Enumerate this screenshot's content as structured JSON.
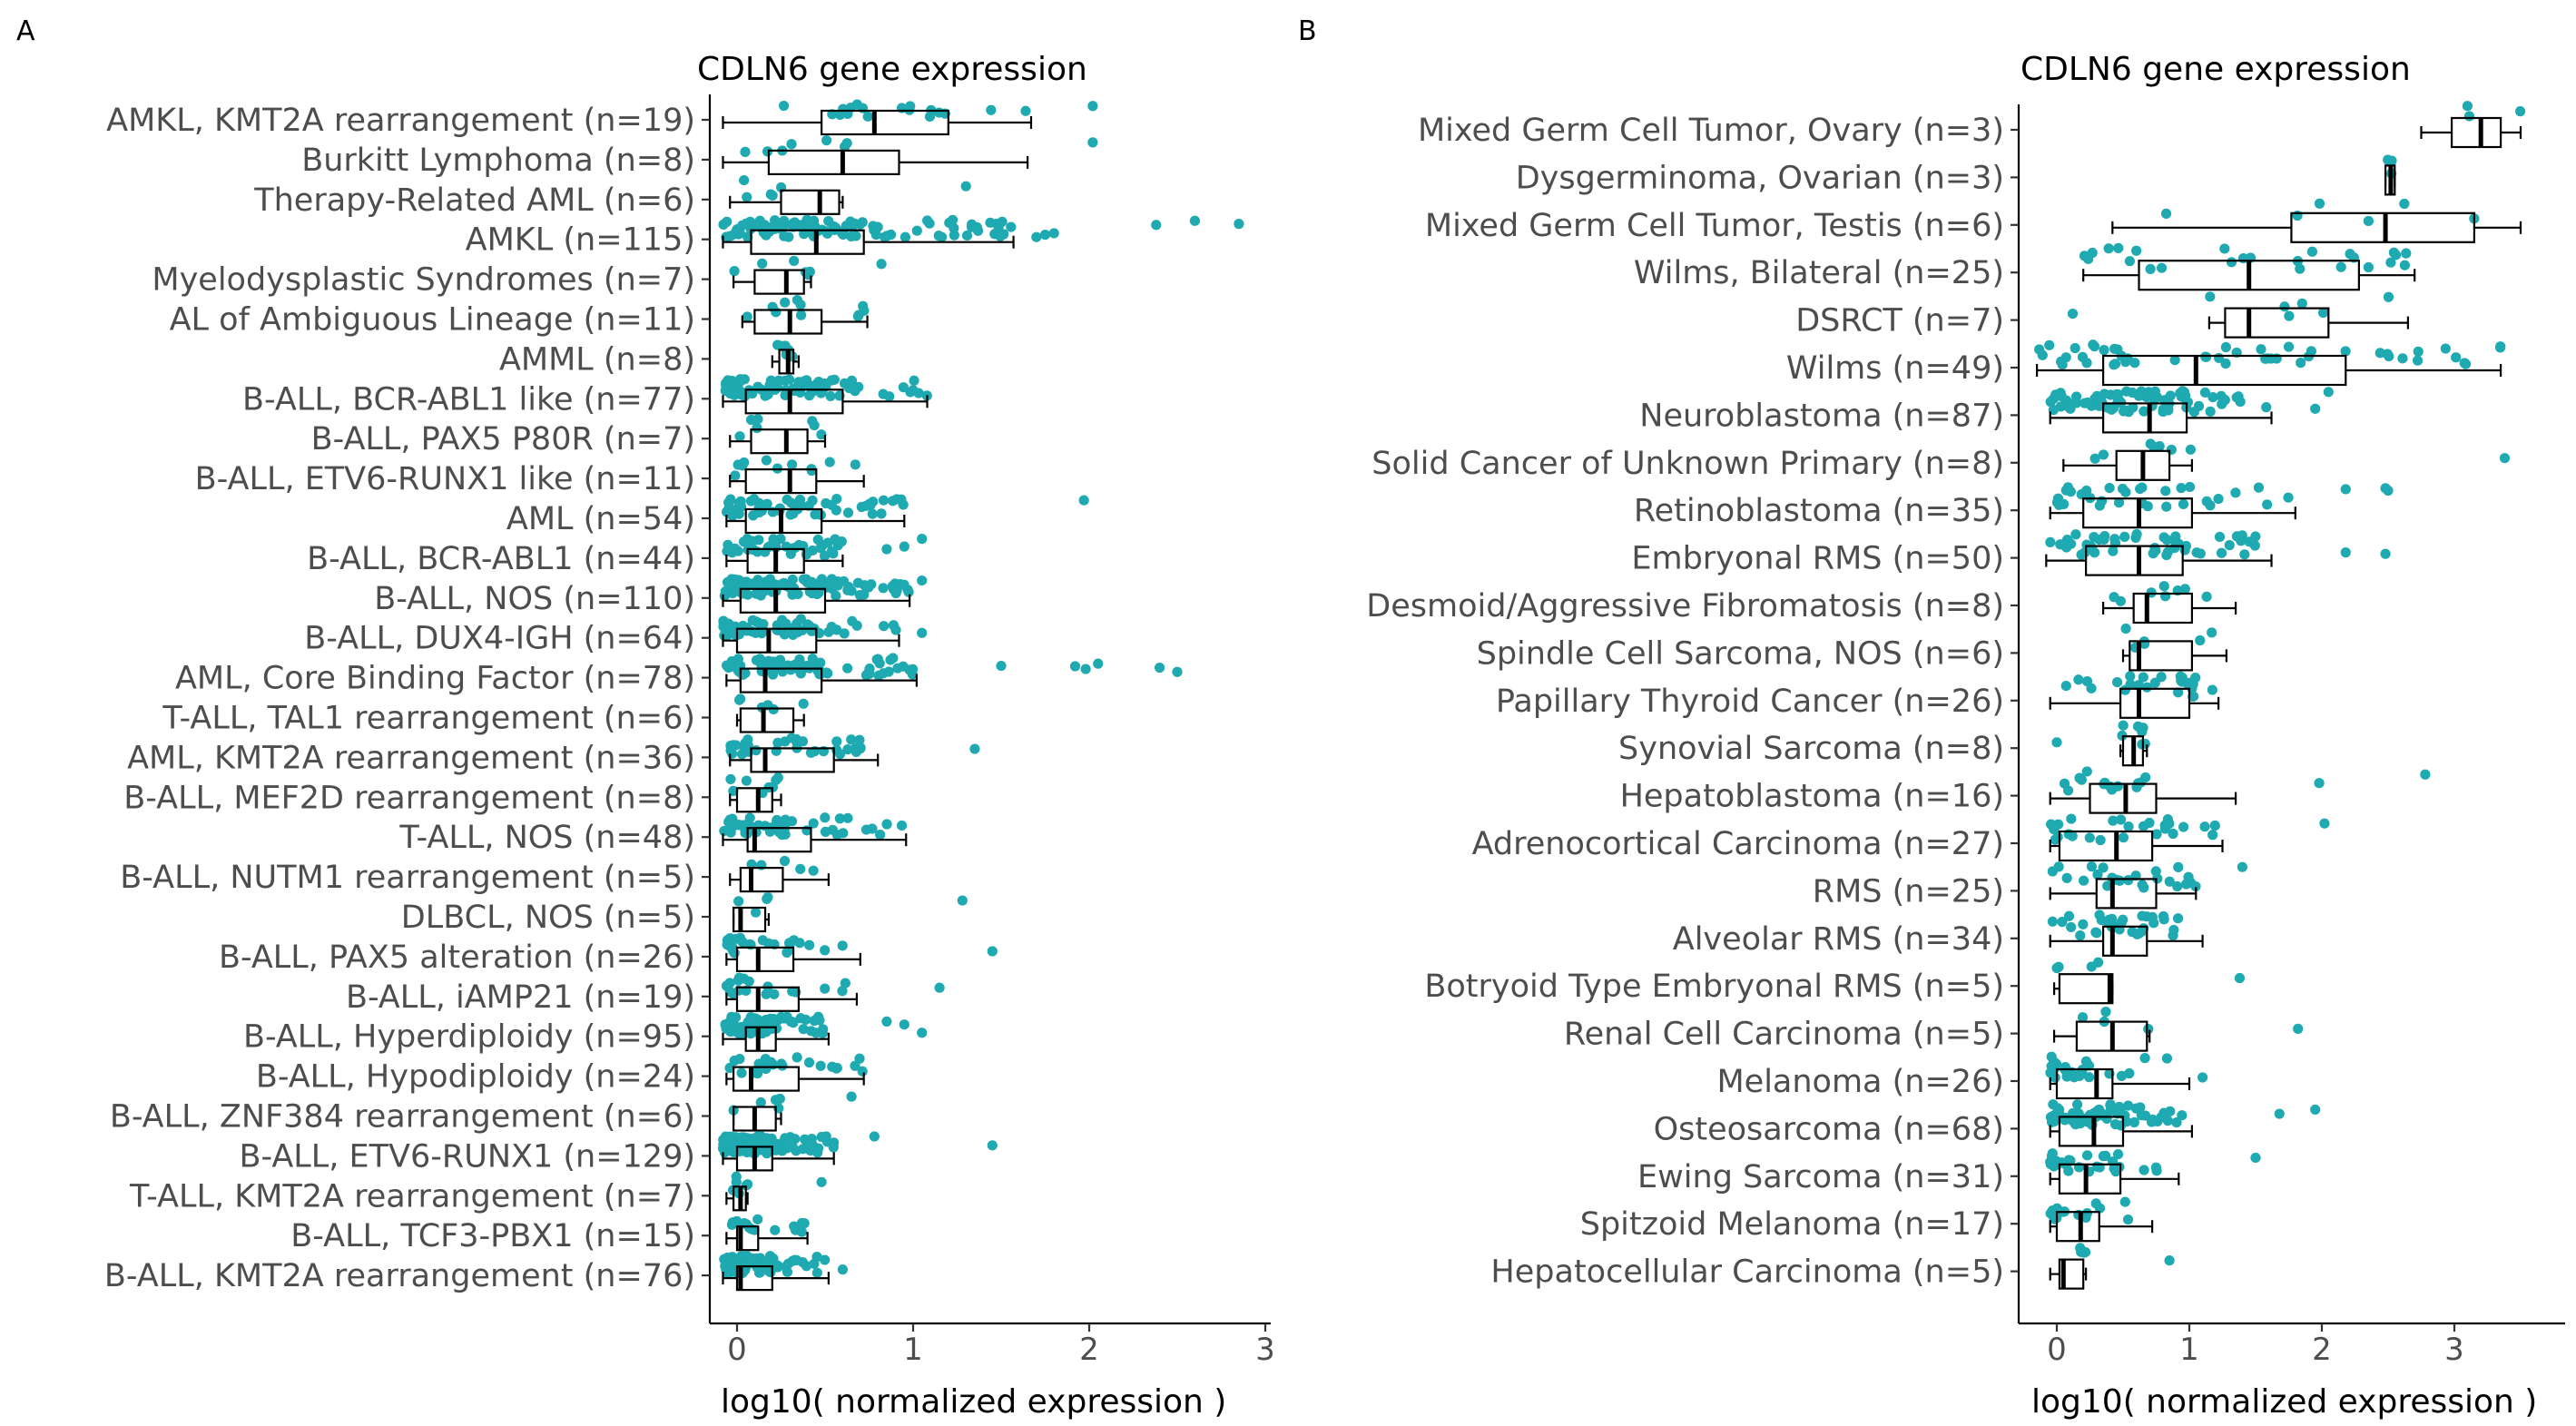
{
  "colors": {
    "point": "#1fa9b0",
    "box": "#000000",
    "label": "#4d4d4d"
  },
  "chart_data": [
    {
      "panel": "A",
      "type": "boxplot",
      "title": "CDLN6 gene expression",
      "xlabel": "log10( normalized expression )",
      "ylabel": "",
      "xlim": [
        -0.1,
        3.0
      ],
      "xticks": [
        0,
        1,
        2,
        3
      ],
      "categories": [
        {
          "label": "AMKL, KMT2A rearrangement (n=19)",
          "n": 19,
          "min": -0.08,
          "q1": 0.48,
          "median": 0.78,
          "q3": 1.2,
          "max": 1.67,
          "outliers": [
            2.02
          ]
        },
        {
          "label": "Burkitt Lymphoma (n=8)",
          "n": 8,
          "min": -0.08,
          "q1": 0.18,
          "median": 0.6,
          "q3": 0.92,
          "max": 1.65,
          "outliers": [
            2.02
          ]
        },
        {
          "label": "Therapy-Related AML (n=6)",
          "n": 6,
          "min": -0.04,
          "q1": 0.25,
          "median": 0.47,
          "q3": 0.58,
          "max": 0.6,
          "outliers": [
            1.3
          ]
        },
        {
          "label": "AMKL (n=115)",
          "n": 115,
          "min": -0.08,
          "q1": 0.08,
          "median": 0.45,
          "q3": 0.72,
          "max": 1.57,
          "outliers": [
            1.7,
            1.75,
            1.8,
            2.38,
            2.6,
            2.85
          ]
        },
        {
          "label": "Myelodysplastic Syndromes (n=7)",
          "n": 7,
          "min": -0.02,
          "q1": 0.1,
          "median": 0.28,
          "q3": 0.38,
          "max": 0.42,
          "outliers": [
            0.82
          ]
        },
        {
          "label": "AL of Ambiguous Lineage (n=11)",
          "n": 11,
          "min": 0.03,
          "q1": 0.1,
          "median": 0.3,
          "q3": 0.48,
          "max": 0.74,
          "outliers": []
        },
        {
          "label": "AMML (n=8)",
          "n": 8,
          "min": 0.2,
          "q1": 0.24,
          "median": 0.29,
          "q3": 0.32,
          "max": 0.35,
          "outliers": []
        },
        {
          "label": "B-ALL, BCR-ABL1 like (n=77)",
          "n": 77,
          "min": -0.08,
          "q1": 0.05,
          "median": 0.3,
          "q3": 0.6,
          "max": 1.08,
          "outliers": []
        },
        {
          "label": "B-ALL, PAX5 P80R (n=7)",
          "n": 7,
          "min": -0.04,
          "q1": 0.08,
          "median": 0.28,
          "q3": 0.4,
          "max": 0.5,
          "outliers": []
        },
        {
          "label": "B-ALL, ETV6-RUNX1 like (n=11)",
          "n": 11,
          "min": -0.04,
          "q1": 0.05,
          "median": 0.3,
          "q3": 0.45,
          "max": 0.72,
          "outliers": []
        },
        {
          "label": "AML (n=54)",
          "n": 54,
          "min": -0.06,
          "q1": 0.05,
          "median": 0.25,
          "q3": 0.48,
          "max": 0.95,
          "outliers": [
            1.97
          ]
        },
        {
          "label": "B-ALL, BCR-ABL1 (n=44)",
          "n": 44,
          "min": -0.06,
          "q1": 0.06,
          "median": 0.22,
          "q3": 0.38,
          "max": 0.6,
          "outliers": [
            0.85,
            0.95,
            1.05
          ]
        },
        {
          "label": "B-ALL, NOS (n=110)",
          "n": 110,
          "min": -0.08,
          "q1": 0.02,
          "median": 0.22,
          "q3": 0.5,
          "max": 0.98,
          "outliers": [
            1.05
          ]
        },
        {
          "label": "B-ALL, DUX4-IGH (n=64)",
          "n": 64,
          "min": -0.08,
          "q1": 0.0,
          "median": 0.18,
          "q3": 0.45,
          "max": 0.92,
          "outliers": [
            1.05
          ]
        },
        {
          "label": "AML, Core Binding Factor (n=78)",
          "n": 78,
          "min": -0.06,
          "q1": 0.02,
          "median": 0.16,
          "q3": 0.48,
          "max": 1.02,
          "outliers": [
            1.5,
            1.92,
            1.98,
            2.05,
            2.4,
            2.5
          ]
        },
        {
          "label": "T-ALL, TAL1 rearrangement (n=6)",
          "n": 6,
          "min": 0.0,
          "q1": 0.02,
          "median": 0.15,
          "q3": 0.32,
          "max": 0.38,
          "outliers": []
        },
        {
          "label": "AML, KMT2A rearrangement (n=36)",
          "n": 36,
          "min": -0.04,
          "q1": 0.08,
          "median": 0.16,
          "q3": 0.55,
          "max": 0.8,
          "outliers": [
            1.35
          ]
        },
        {
          "label": "B-ALL, MEF2D rearrangement (n=8)",
          "n": 8,
          "min": -0.04,
          "q1": 0.0,
          "median": 0.12,
          "q3": 0.2,
          "max": 0.25,
          "outliers": []
        },
        {
          "label": "T-ALL, NOS (n=48)",
          "n": 48,
          "min": -0.08,
          "q1": 0.06,
          "median": 0.1,
          "q3": 0.42,
          "max": 0.96,
          "outliers": []
        },
        {
          "label": "B-ALL, NUTM1 rearrangement (n=5)",
          "n": 5,
          "min": -0.04,
          "q1": 0.02,
          "median": 0.08,
          "q3": 0.26,
          "max": 0.52,
          "outliers": []
        },
        {
          "label": "DLBCL, NOS (n=5)",
          "n": 5,
          "min": -0.02,
          "q1": -0.02,
          "median": 0.02,
          "q3": 0.16,
          "max": 0.18,
          "outliers": [
            1.28
          ]
        },
        {
          "label": "B-ALL, PAX5 alteration (n=26)",
          "n": 26,
          "min": -0.06,
          "q1": 0.0,
          "median": 0.12,
          "q3": 0.32,
          "max": 0.7,
          "outliers": [
            1.45
          ]
        },
        {
          "label": "B-ALL, iAMP21 (n=19)",
          "n": 19,
          "min": -0.06,
          "q1": 0.0,
          "median": 0.12,
          "q3": 0.35,
          "max": 0.68,
          "outliers": [
            1.15
          ]
        },
        {
          "label": "B-ALL, Hyperdiploidy (n=95)",
          "n": 95,
          "min": -0.08,
          "q1": 0.05,
          "median": 0.12,
          "q3": 0.22,
          "max": 0.52,
          "outliers": [
            0.85,
            0.95,
            1.05
          ]
        },
        {
          "label": "B-ALL, Hypodiploidy (n=24)",
          "n": 24,
          "min": -0.06,
          "q1": -0.02,
          "median": 0.08,
          "q3": 0.35,
          "max": 0.72,
          "outliers": []
        },
        {
          "label": "B-ALL, ZNF384 rearrangement (n=6)",
          "n": 6,
          "min": -0.02,
          "q1": -0.02,
          "median": 0.1,
          "q3": 0.22,
          "max": 0.25,
          "outliers": [
            0.65
          ]
        },
        {
          "label": "B-ALL, ETV6-RUNX1 (n=129)",
          "n": 129,
          "min": -0.08,
          "q1": 0.0,
          "median": 0.1,
          "q3": 0.2,
          "max": 0.55,
          "outliers": [
            0.78,
            1.45
          ]
        },
        {
          "label": "T-ALL, KMT2A rearrangement (n=7)",
          "n": 7,
          "min": -0.06,
          "q1": -0.02,
          "median": 0.02,
          "q3": 0.05,
          "max": 0.06,
          "outliers": [
            0.48
          ]
        },
        {
          "label": "B-ALL, TCF3-PBX1 (n=15)",
          "n": 15,
          "min": -0.06,
          "q1": 0.0,
          "median": 0.02,
          "q3": 0.12,
          "max": 0.4,
          "outliers": []
        },
        {
          "label": "B-ALL, KMT2A rearrangement (n=76)",
          "n": 76,
          "min": -0.08,
          "q1": 0.0,
          "median": 0.02,
          "q3": 0.2,
          "max": 0.52,
          "outliers": [
            0.6
          ]
        }
      ]
    },
    {
      "panel": "B",
      "type": "boxplot",
      "title": "CDLN6 gene expression",
      "xlabel": "log10( normalized expression )",
      "ylabel": "",
      "xlim": [
        -0.2,
        3.6
      ],
      "xticks": [
        0,
        1,
        2,
        3
      ],
      "categories": [
        {
          "label": "Mixed Germ Cell Tumor, Ovary (n=3)",
          "n": 3,
          "min": 2.75,
          "q1": 2.98,
          "median": 3.2,
          "q3": 3.35,
          "max": 3.5,
          "outliers": []
        },
        {
          "label": "Dysgerminoma, Ovarian (n=3)",
          "n": 3,
          "min": 2.48,
          "q1": 2.48,
          "median": 2.52,
          "q3": 2.55,
          "max": 2.55,
          "outliers": []
        },
        {
          "label": "Mixed Germ Cell Tumor, Testis (n=6)",
          "n": 6,
          "min": 0.42,
          "q1": 1.77,
          "median": 2.48,
          "q3": 3.15,
          "max": 3.5,
          "outliers": []
        },
        {
          "label": "Wilms, Bilateral (n=25)",
          "n": 25,
          "min": 0.2,
          "q1": 0.62,
          "median": 1.45,
          "q3": 2.28,
          "max": 2.7,
          "outliers": []
        },
        {
          "label": "DSRCT (n=7)",
          "n": 7,
          "min": 1.15,
          "q1": 1.27,
          "median": 1.45,
          "q3": 2.05,
          "max": 2.65,
          "outliers": [
            0.12
          ]
        },
        {
          "label": "Wilms (n=49)",
          "n": 49,
          "min": -0.15,
          "q1": 0.35,
          "median": 1.05,
          "q3": 2.18,
          "max": 3.35,
          "outliers": []
        },
        {
          "label": "Neuroblastoma (n=87)",
          "n": 87,
          "min": -0.05,
          "q1": 0.35,
          "median": 0.7,
          "q3": 0.98,
          "max": 1.62,
          "outliers": [
            1.95,
            2.05
          ]
        },
        {
          "label": "Solid Cancer of Unknown Primary (n=8)",
          "n": 8,
          "min": 0.05,
          "q1": 0.45,
          "median": 0.65,
          "q3": 0.85,
          "max": 1.02,
          "outliers": [
            3.38
          ]
        },
        {
          "label": "Retinoblastoma (n=35)",
          "n": 35,
          "min": -0.05,
          "q1": 0.2,
          "median": 0.62,
          "q3": 1.02,
          "max": 1.8,
          "outliers": [
            2.18,
            2.48,
            2.5
          ]
        },
        {
          "label": "Embryonal RMS (n=50)",
          "n": 50,
          "min": -0.08,
          "q1": 0.22,
          "median": 0.62,
          "q3": 0.95,
          "max": 1.62,
          "outliers": [
            2.18,
            2.48
          ]
        },
        {
          "label": "Desmoid/Aggressive Fibromatosis (n=8)",
          "n": 8,
          "min": 0.35,
          "q1": 0.58,
          "median": 0.68,
          "q3": 1.02,
          "max": 1.35,
          "outliers": []
        },
        {
          "label": "Spindle Cell Sarcoma, NOS (n=6)",
          "n": 6,
          "min": 0.5,
          "q1": 0.55,
          "median": 0.62,
          "q3": 1.02,
          "max": 1.28,
          "outliers": []
        },
        {
          "label": "Papillary Thyroid Cancer (n=26)",
          "n": 26,
          "min": -0.05,
          "q1": 0.48,
          "median": 0.62,
          "q3": 1.0,
          "max": 1.22,
          "outliers": []
        },
        {
          "label": "Synovial Sarcoma (n=8)",
          "n": 8,
          "min": 0.48,
          "q1": 0.5,
          "median": 0.58,
          "q3": 0.65,
          "max": 0.68,
          "outliers": [
            0.0
          ]
        },
        {
          "label": "Hepatoblastoma (n=16)",
          "n": 16,
          "min": -0.05,
          "q1": 0.25,
          "median": 0.52,
          "q3": 0.75,
          "max": 1.35,
          "outliers": [
            1.98,
            2.78
          ]
        },
        {
          "label": "Adrenocortical Carcinoma (n=27)",
          "n": 27,
          "min": -0.05,
          "q1": 0.02,
          "median": 0.45,
          "q3": 0.72,
          "max": 1.25,
          "outliers": [
            2.02
          ]
        },
        {
          "label": "RMS (n=25)",
          "n": 25,
          "min": -0.05,
          "q1": 0.3,
          "median": 0.42,
          "q3": 0.75,
          "max": 1.05,
          "outliers": [
            1.4
          ]
        },
        {
          "label": "Alveolar RMS (n=34)",
          "n": 34,
          "min": -0.05,
          "q1": 0.35,
          "median": 0.42,
          "q3": 0.68,
          "max": 1.1,
          "outliers": []
        },
        {
          "label": "Botryoid Type Embryonal RMS (n=5)",
          "n": 5,
          "min": -0.02,
          "q1": 0.02,
          "median": 0.4,
          "q3": 0.42,
          "max": 0.42,
          "outliers": [
            1.38
          ]
        },
        {
          "label": "Renal Cell Carcinoma (n=5)",
          "n": 5,
          "min": -0.02,
          "q1": 0.15,
          "median": 0.42,
          "q3": 0.68,
          "max": 0.7,
          "outliers": [
            1.82
          ]
        },
        {
          "label": "Melanoma (n=26)",
          "n": 26,
          "min": -0.05,
          "q1": 0.0,
          "median": 0.3,
          "q3": 0.42,
          "max": 1.0,
          "outliers": [
            1.1
          ]
        },
        {
          "label": "Osteosarcoma (n=68)",
          "n": 68,
          "min": -0.05,
          "q1": 0.02,
          "median": 0.28,
          "q3": 0.5,
          "max": 1.02,
          "outliers": [
            1.68,
            1.95
          ]
        },
        {
          "label": "Ewing Sarcoma (n=31)",
          "n": 31,
          "min": -0.05,
          "q1": 0.02,
          "median": 0.22,
          "q3": 0.48,
          "max": 0.92,
          "outliers": [
            1.5
          ]
        },
        {
          "label": "Spitzoid Melanoma (n=17)",
          "n": 17,
          "min": -0.05,
          "q1": 0.0,
          "median": 0.18,
          "q3": 0.32,
          "max": 0.72,
          "outliers": []
        },
        {
          "label": "Hepatocellular Carcinoma (n=5)",
          "n": 5,
          "min": -0.05,
          "q1": 0.02,
          "median": 0.05,
          "q3": 0.2,
          "max": 0.22,
          "outliers": [
            0.85
          ]
        }
      ]
    }
  ]
}
